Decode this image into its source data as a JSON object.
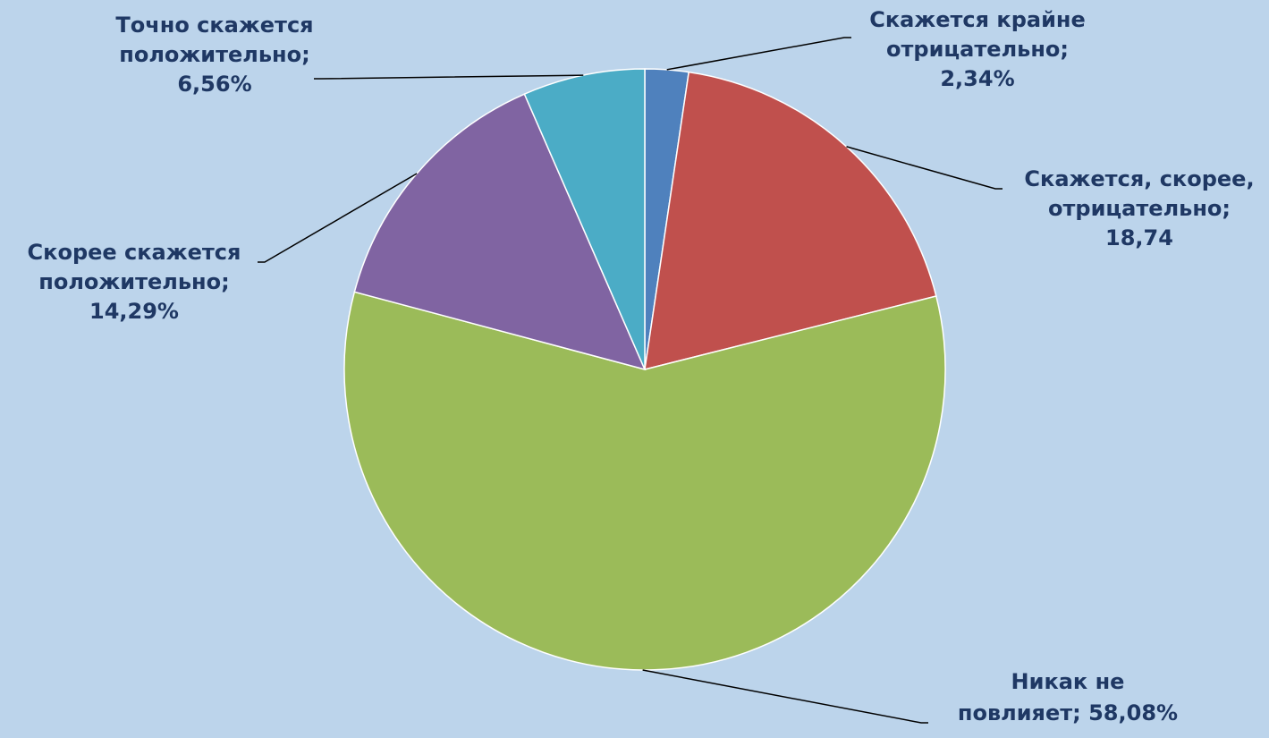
{
  "chart_data": {
    "type": "pie",
    "title": "",
    "slices": [
      {
        "lines": [
          "Скажется крайне",
          "отрицательно;",
          "2,34%"
        ],
        "value": 2.34,
        "color": "#4F81BD"
      },
      {
        "lines": [
          "Скажется, скорее,",
          "отрицательно;",
          "18,74"
        ],
        "value": 18.74,
        "color": "#C0504D"
      },
      {
        "lines": [
          "Никак не",
          "повлияет; 58,08%"
        ],
        "value": 58.08,
        "color": "#9BBB59"
      },
      {
        "lines": [
          "Скорее скажется",
          "положительно;",
          "14,29%"
        ],
        "value": 14.29,
        "color": "#8064A2"
      },
      {
        "lines": [
          "Точно скажется",
          "положительно;",
          "6,56%"
        ],
        "value": 6.56,
        "color": "#4BACC6"
      }
    ],
    "legend": "none",
    "grid": false
  }
}
